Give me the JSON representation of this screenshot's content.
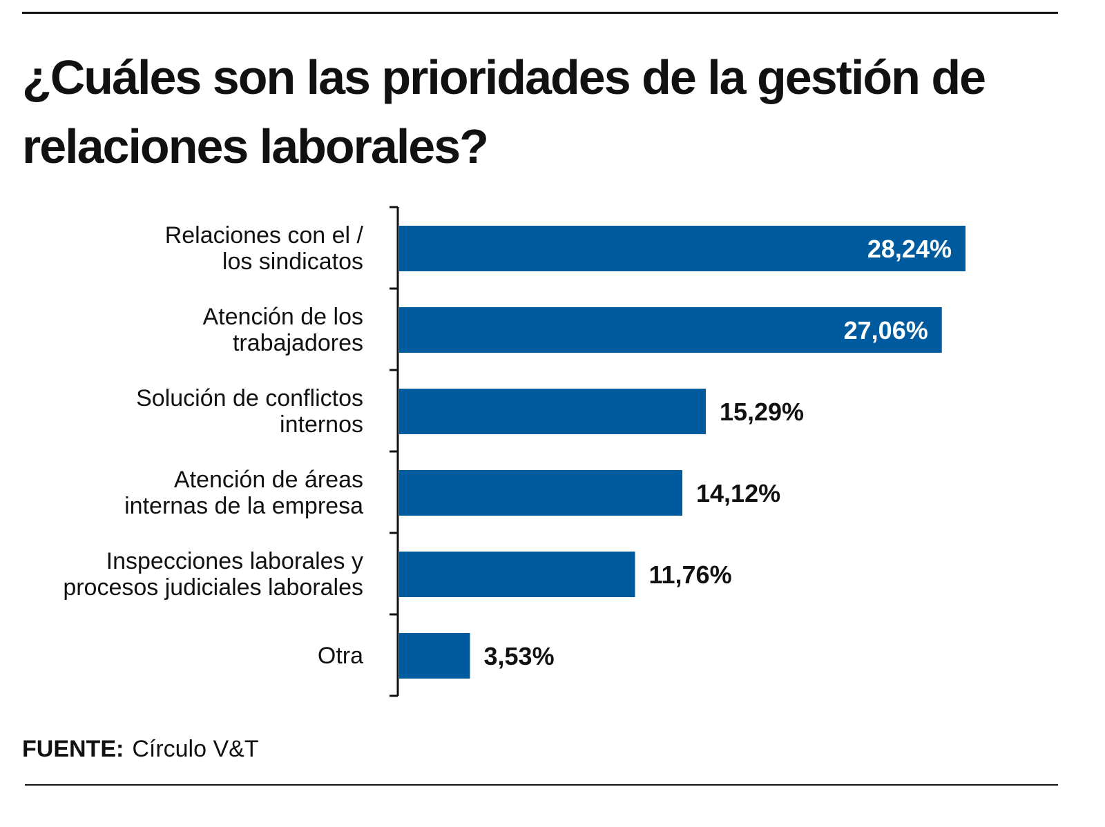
{
  "chart_data": {
    "type": "bar",
    "orientation": "horizontal",
    "title": "¿Cuáles son las prioridades de la gestión de relaciones laborales?",
    "categories": [
      "Relaciones con el /\nlos sindicatos",
      "Atención de los\ntrabajadores",
      "Solución de conflictos\ninternos",
      "Atención de áreas\ninternas de la empresa",
      "Inspecciones laborales y\nprocesos judiciales laborales",
      "Otra"
    ],
    "values": [
      28.24,
      27.06,
      15.29,
      14.12,
      11.76,
      3.53
    ],
    "data_labels": [
      "28,24%",
      "27,06%",
      "15,29%",
      "14,12%",
      "11,76%",
      "3,53%"
    ],
    "unit": "%",
    "bar_color": "#005A9E",
    "grid": false
  },
  "source": {
    "label": "FUENTE:",
    "text": "Círculo V&T"
  }
}
